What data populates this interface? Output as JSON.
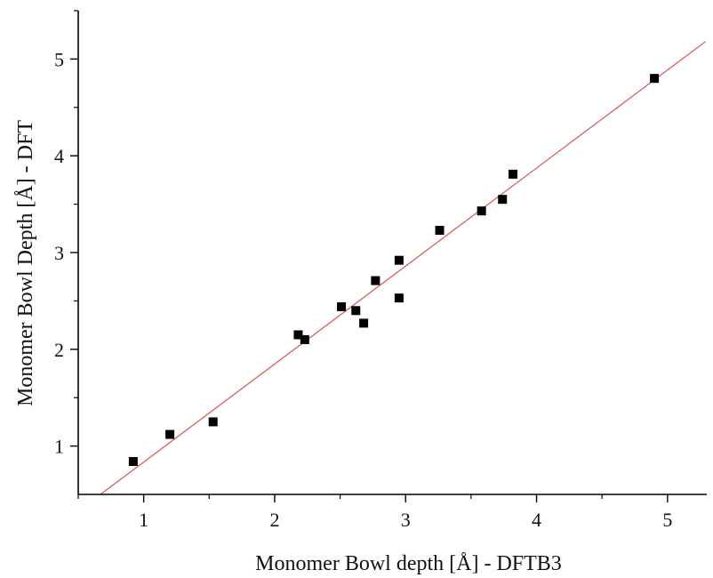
{
  "chart_data": {
    "type": "scatter",
    "title": "",
    "xlabel": "Monomer Bowl depth [Å] - DFTB3",
    "ylabel": "Monomer Bowl Depth [Å] - DFT",
    "xlim": [
      0.5,
      5.3
    ],
    "ylim": [
      0.5,
      5.5
    ],
    "xticks": [
      1,
      2,
      3,
      4,
      5
    ],
    "yticks": [
      1,
      2,
      3,
      4,
      5
    ],
    "xtick_labels": [
      "1",
      "2",
      "3",
      "4",
      "5"
    ],
    "ytick_labels": [
      "1",
      "2",
      "3",
      "4",
      "5"
    ],
    "grid": false,
    "legend": "none",
    "series": [
      {
        "points": [
          {
            "x": 0.92,
            "y": 0.84
          },
          {
            "x": 1.2,
            "y": 1.12
          },
          {
            "x": 1.53,
            "y": 1.25
          },
          {
            "x": 2.18,
            "y": 2.15
          },
          {
            "x": 2.23,
            "y": 2.1
          },
          {
            "x": 2.51,
            "y": 2.44
          },
          {
            "x": 2.62,
            "y": 2.4
          },
          {
            "x": 2.68,
            "y": 2.27
          },
          {
            "x": 2.77,
            "y": 2.71
          },
          {
            "x": 2.95,
            "y": 2.92
          },
          {
            "x": 2.95,
            "y": 2.53
          },
          {
            "x": 3.26,
            "y": 3.23
          },
          {
            "x": 3.58,
            "y": 3.43
          },
          {
            "x": 3.74,
            "y": 3.55
          },
          {
            "x": 3.82,
            "y": 3.81
          },
          {
            "x": 4.9,
            "y": 4.8
          }
        ],
        "marker": "square",
        "color": "#000000"
      }
    ],
    "fit_line": {
      "x": [
        0.67,
        5.29
      ],
      "y": [
        0.5,
        5.18
      ],
      "color": "#d9534f"
    }
  }
}
